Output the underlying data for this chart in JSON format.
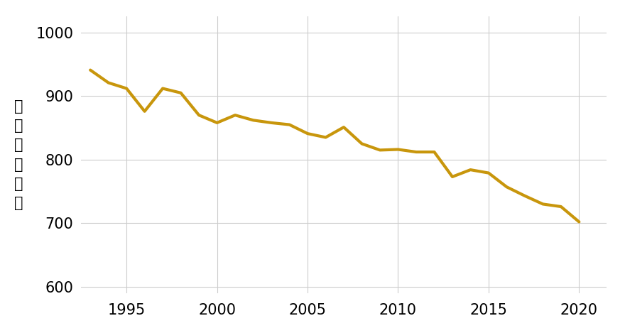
{
  "years": [
    1993,
    1994,
    1995,
    1996,
    1997,
    1998,
    1999,
    2000,
    2001,
    2002,
    2003,
    2004,
    2005,
    2006,
    2007,
    2008,
    2009,
    2010,
    2011,
    2012,
    2013,
    2014,
    2015,
    2016,
    2017,
    2018,
    2019,
    2020
  ],
  "values": [
    941,
    921,
    912,
    876,
    912,
    905,
    870,
    858,
    870,
    862,
    858,
    855,
    841,
    835,
    851,
    825,
    815,
    816,
    812,
    812,
    773,
    784,
    779,
    757,
    743,
    730,
    726,
    702
  ],
  "line_color": "#C8960C",
  "line_width": 3.0,
  "ylabel_top": "（ト）",
  "ylabel_bottom": "需要量",
  "ylim": [
    590,
    1025
  ],
  "yticks": [
    600,
    700,
    800,
    900,
    1000
  ],
  "xlim": [
    1992.5,
    2021.5
  ],
  "xticks": [
    1995,
    2000,
    2005,
    2010,
    2015,
    2020
  ],
  "grid_color": "#cccccc",
  "background_color": "#ffffff",
  "tick_fontsize": 15,
  "ylabel_fontsize": 15
}
